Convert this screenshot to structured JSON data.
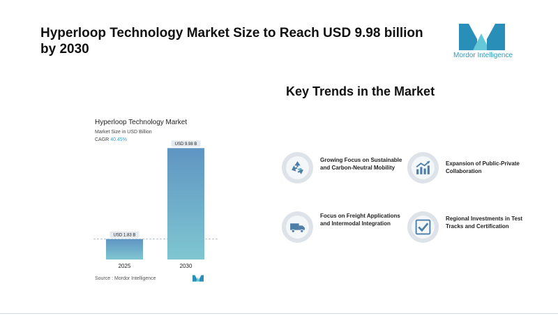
{
  "headline": "Hyperloop Technology Market Size to Reach USD 9.98 billion by 2030",
  "brand": {
    "name": "Mordor Intelligence",
    "colors": {
      "teal": "#2a9cc0",
      "light": "#64c8d8"
    }
  },
  "chart_data": {
    "type": "bar",
    "title": "Hyperloop Technology Market",
    "subtitle": "Market Size in USD Billion",
    "cagr_label": "CAGR",
    "cagr_value": "40.45%",
    "categories": [
      "2025",
      "2030"
    ],
    "values": [
      1.83,
      9.98
    ],
    "data_labels": [
      "USD 1.83 B",
      "USD 9.98 B"
    ],
    "ylim": [
      0,
      10.5
    ],
    "xlabel": "",
    "ylabel": "",
    "grid": false,
    "bar_gradient": [
      "#5f95c2",
      "#7fc6d1"
    ],
    "source": "Source :  Mordor Intelligence"
  },
  "trends": {
    "title": "Key Trends in the Market",
    "items": [
      {
        "label": "Growing Focus on Sustainable and Carbon-Neutral Mobility",
        "icon": "recycle-icon"
      },
      {
        "label": "Expansion of Public-Private Collaboration",
        "icon": "collaboration-chart-icon"
      },
      {
        "label": "Focus on Freight Applications and Intermodal Integration",
        "icon": "truck-icon"
      },
      {
        "label": "Regional Investments in Test Tracks and Certification",
        "icon": "checkmark-icon"
      }
    ]
  }
}
